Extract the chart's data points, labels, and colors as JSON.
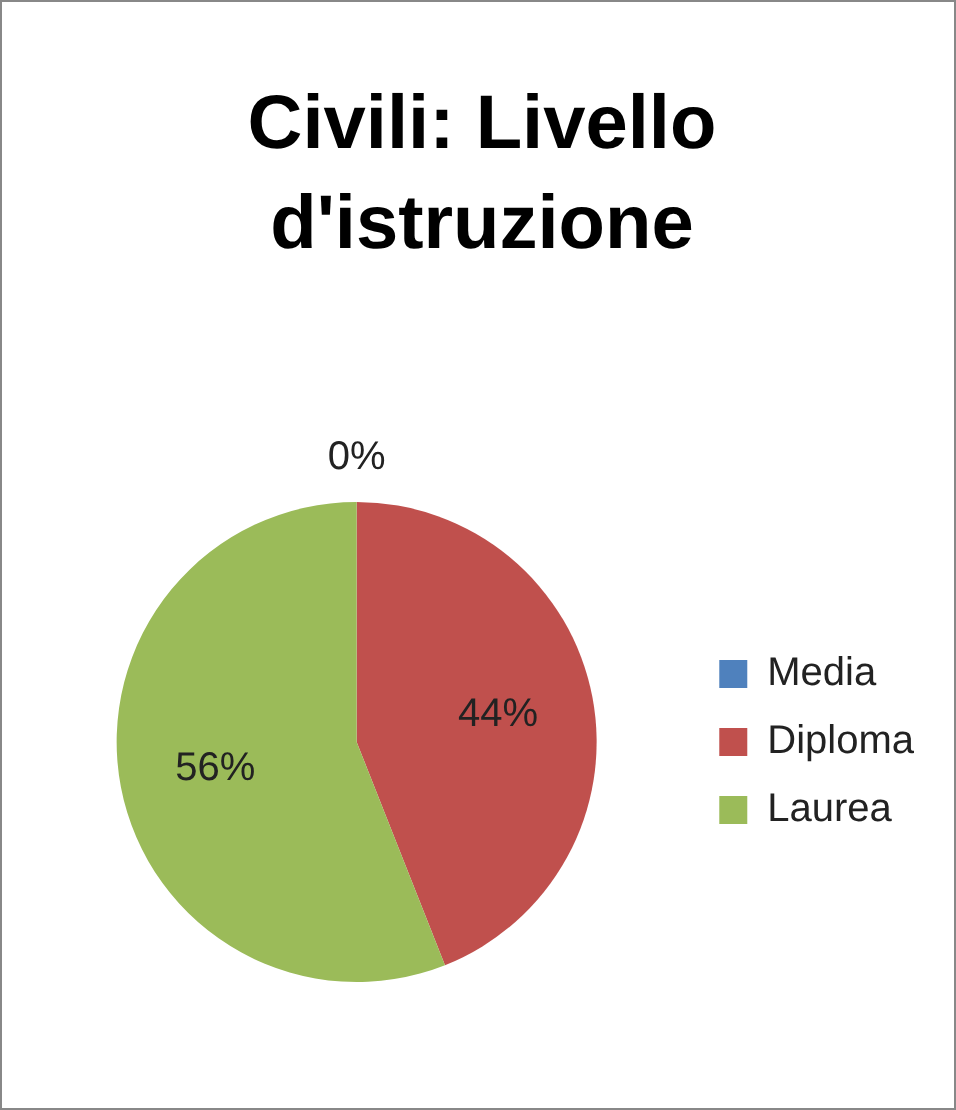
{
  "chart_data": {
    "type": "pie",
    "title": "Civili: Livello d'istruzione",
    "categories": [
      "Media",
      "Diploma",
      "Laurea"
    ],
    "values": [
      0,
      44,
      56
    ],
    "colors": [
      "#4f81bd",
      "#c0504d",
      "#9bbb59"
    ],
    "value_labels": [
      "0%",
      "44%",
      "56%"
    ],
    "legend": "right"
  }
}
